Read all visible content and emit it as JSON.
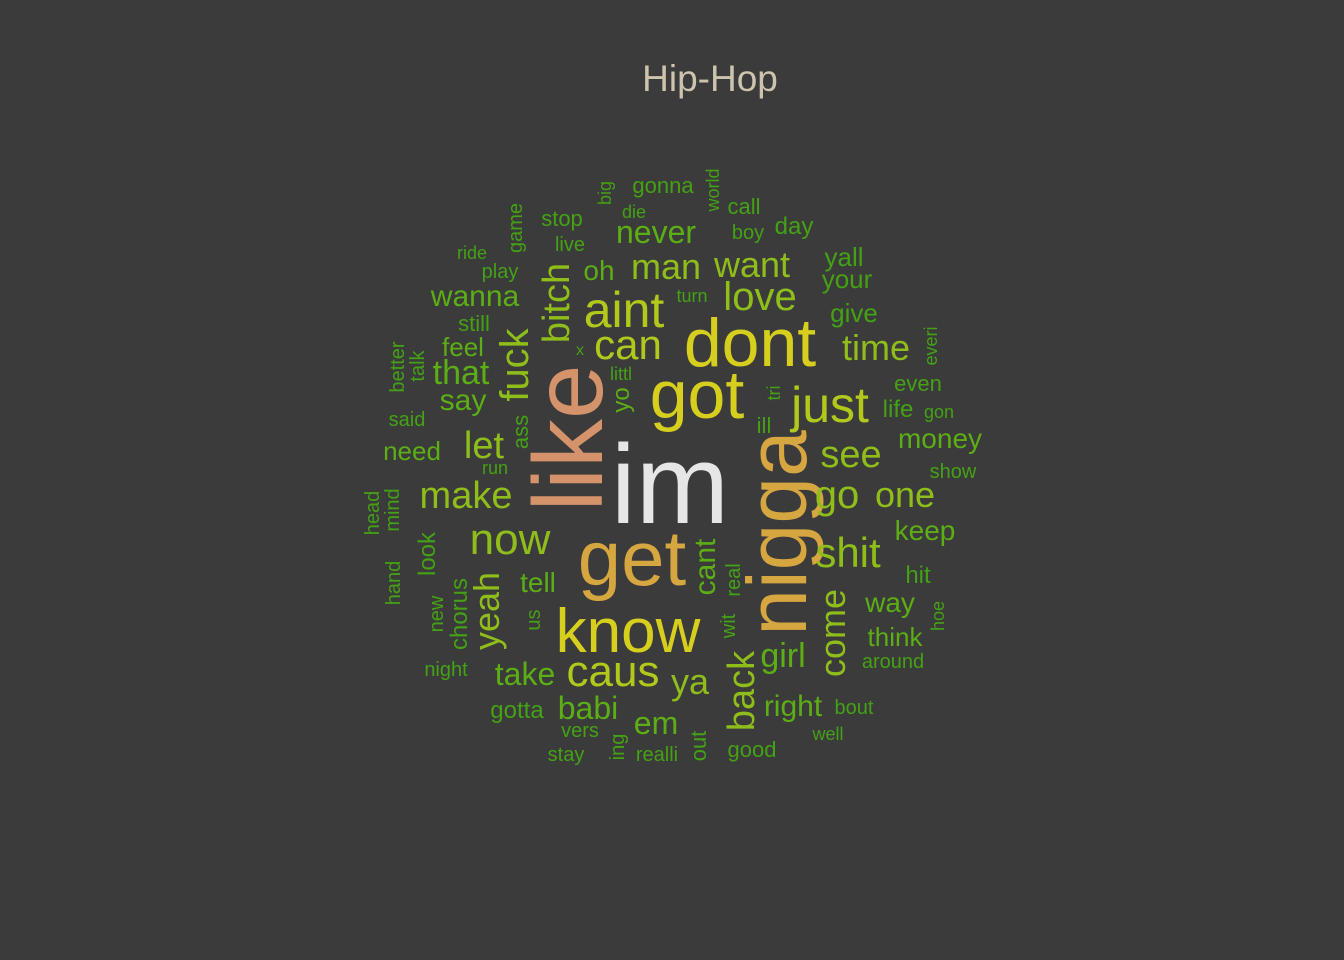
{
  "title": "Hip-Hop",
  "colors": {
    "background": "#3b3b3b",
    "title": "#cdc4ad",
    "white": "#e6e6e6",
    "tan": "#d4936a",
    "gold": "#d6a640",
    "yellow": "#d6cf1e",
    "lime": "#b2c81a",
    "yellowgreen": "#8fbd1a",
    "green": "#5cae14",
    "darkgreen": "#44a114"
  },
  "words": [
    {
      "text": "im",
      "color": "white"
    },
    {
      "text": "like",
      "color": "tan"
    },
    {
      "text": "get",
      "color": "gold"
    },
    {
      "text": "nigga",
      "color": "gold"
    },
    {
      "text": "dont",
      "color": "yellow"
    },
    {
      "text": "got",
      "color": "yellow"
    },
    {
      "text": "know",
      "color": "yellow"
    },
    {
      "text": "aint",
      "color": "lime"
    },
    {
      "text": "just",
      "color": "lime"
    },
    {
      "text": "caus",
      "color": "lime"
    },
    {
      "text": "can",
      "color": "lime"
    },
    {
      "text": "now",
      "color": "yellowgreen"
    },
    {
      "text": "shit",
      "color": "yellowgreen"
    },
    {
      "text": "go",
      "color": "yellowgreen"
    },
    {
      "text": "fuck",
      "color": "yellowgreen"
    },
    {
      "text": "bitch",
      "color": "yellowgreen"
    },
    {
      "text": "love",
      "color": "yellowgreen"
    },
    {
      "text": "make",
      "color": "yellowgreen"
    },
    {
      "text": "see",
      "color": "yellowgreen"
    },
    {
      "text": "let",
      "color": "yellowgreen"
    },
    {
      "text": "one",
      "color": "yellowgreen"
    },
    {
      "text": "want",
      "color": "yellowgreen"
    },
    {
      "text": "man",
      "color": "yellowgreen"
    },
    {
      "text": "yeah",
      "color": "yellowgreen"
    },
    {
      "text": "come",
      "color": "yellowgreen"
    },
    {
      "text": "back",
      "color": "yellowgreen"
    },
    {
      "text": "ya",
      "color": "yellowgreen"
    },
    {
      "text": "time",
      "color": "yellowgreen"
    },
    {
      "text": "girl",
      "color": "green"
    },
    {
      "text": "cant",
      "color": "green"
    },
    {
      "text": "take",
      "color": "green"
    },
    {
      "text": "em",
      "color": "green"
    },
    {
      "text": "babi",
      "color": "green"
    },
    {
      "text": "right",
      "color": "green"
    },
    {
      "text": "never",
      "color": "green"
    },
    {
      "text": "that",
      "color": "green"
    },
    {
      "text": "say",
      "color": "green"
    },
    {
      "text": "wanna",
      "color": "green"
    },
    {
      "text": "money",
      "color": "green"
    },
    {
      "text": "keep",
      "color": "green"
    },
    {
      "text": "way",
      "color": "green"
    },
    {
      "text": "tell",
      "color": "green"
    },
    {
      "text": "oh",
      "color": "green"
    },
    {
      "text": "feel",
      "color": "green"
    },
    {
      "text": "think",
      "color": "green"
    },
    {
      "text": "need",
      "color": "green"
    },
    {
      "text": "yo",
      "color": "green"
    },
    {
      "text": "your",
      "color": "darkgreen"
    },
    {
      "text": "yall",
      "color": "darkgreen"
    },
    {
      "text": "give",
      "color": "darkgreen"
    },
    {
      "text": "look",
      "color": "darkgreen"
    },
    {
      "text": "chorus",
      "color": "darkgreen"
    },
    {
      "text": "gotta",
      "color": "darkgreen"
    },
    {
      "text": "life",
      "color": "darkgreen"
    },
    {
      "text": "even",
      "color": "darkgreen"
    },
    {
      "text": "hit",
      "color": "darkgreen"
    },
    {
      "text": "still",
      "color": "darkgreen"
    },
    {
      "text": "day",
      "color": "darkgreen"
    },
    {
      "text": "call",
      "color": "darkgreen"
    },
    {
      "text": "gonna",
      "color": "darkgreen"
    },
    {
      "text": "around",
      "color": "darkgreen"
    },
    {
      "text": "good",
      "color": "darkgreen"
    },
    {
      "text": "ill",
      "color": "darkgreen"
    },
    {
      "text": "ass",
      "color": "darkgreen"
    },
    {
      "text": "stop",
      "color": "darkgreen"
    },
    {
      "text": "show",
      "color": "darkgreen"
    },
    {
      "text": "bout",
      "color": "darkgreen"
    },
    {
      "text": "real",
      "color": "darkgreen"
    },
    {
      "text": "wit",
      "color": "darkgreen"
    },
    {
      "text": "us",
      "color": "darkgreen"
    },
    {
      "text": "new",
      "color": "darkgreen"
    },
    {
      "text": "hand",
      "color": "darkgreen"
    },
    {
      "text": "head",
      "color": "darkgreen"
    },
    {
      "text": "mind",
      "color": "darkgreen"
    },
    {
      "text": "run",
      "color": "darkgreen"
    },
    {
      "text": "said",
      "color": "darkgreen"
    },
    {
      "text": "better",
      "color": "darkgreen"
    },
    {
      "text": "talk",
      "color": "darkgreen"
    },
    {
      "text": "play",
      "color": "darkgreen"
    },
    {
      "text": "ride",
      "color": "darkgreen"
    },
    {
      "text": "game",
      "color": "darkgreen"
    },
    {
      "text": "live",
      "color": "darkgreen"
    },
    {
      "text": "die",
      "color": "darkgreen"
    },
    {
      "text": "big",
      "color": "darkgreen"
    },
    {
      "text": "world",
      "color": "darkgreen"
    },
    {
      "text": "boy",
      "color": "darkgreen"
    },
    {
      "text": "turn",
      "color": "darkgreen"
    },
    {
      "text": "x",
      "color": "darkgreen"
    },
    {
      "text": "littl",
      "color": "darkgreen"
    },
    {
      "text": "tri",
      "color": "darkgreen"
    },
    {
      "text": "everi",
      "color": "darkgreen"
    },
    {
      "text": "gon",
      "color": "darkgreen"
    },
    {
      "text": "hoe",
      "color": "darkgreen"
    },
    {
      "text": "night",
      "color": "darkgreen"
    },
    {
      "text": "vers",
      "color": "darkgreen"
    },
    {
      "text": "stay",
      "color": "darkgreen"
    },
    {
      "text": "ing",
      "color": "darkgreen"
    },
    {
      "text": "realli",
      "color": "darkgreen"
    },
    {
      "text": "out",
      "color": "darkgreen"
    },
    {
      "text": "well",
      "color": "darkgreen"
    }
  ]
}
